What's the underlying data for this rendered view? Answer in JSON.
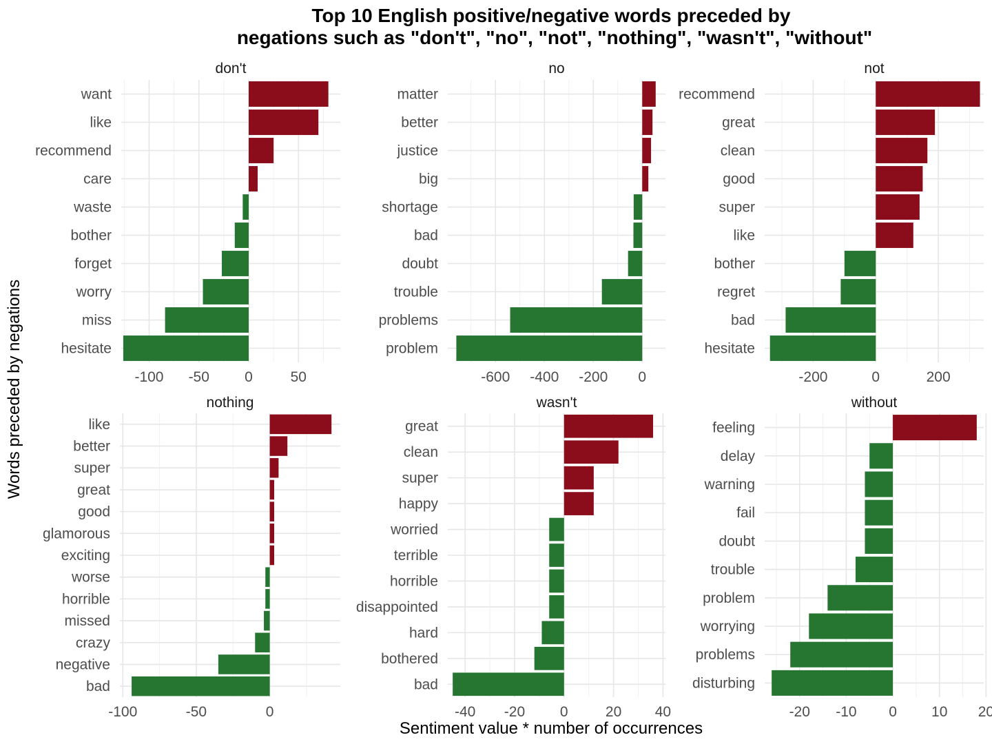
{
  "chart_data": {
    "type": "bar",
    "orientation": "horizontal",
    "title": "Top 10 English positive/negative words preceded by\nnegations such as \"don't\", \"no\", \"not\", \"nothing\", \"wasn't\", \"without\"",
    "xlabel": "Sentiment value * number of occurrences",
    "ylabel": "Words preceded by negations",
    "grid": true,
    "legend": "none",
    "colors": {
      "positive": "#8b0d1b",
      "negative": "#267632"
    },
    "facets": [
      {
        "name": "don't",
        "xlim": [
          -128,
          92
        ],
        "ticks": [
          -100,
          -50,
          0,
          50
        ],
        "categories": [
          "want",
          "like",
          "recommend",
          "care",
          "waste",
          "bother",
          "forget",
          "worry",
          "miss",
          "hesitate"
        ],
        "values": [
          80,
          70,
          25,
          9,
          -6,
          -14,
          -27,
          -46,
          -84,
          -126
        ]
      },
      {
        "name": "no",
        "xlim": [
          -795,
          95
        ],
        "ticks": [
          -600,
          -400,
          -200,
          0
        ],
        "categories": [
          "matter",
          "better",
          "justice",
          "big",
          "shortage",
          "bad",
          "doubt",
          "trouble",
          "problems",
          "problem"
        ],
        "values": [
          55,
          42,
          36,
          25,
          -35,
          -36,
          -58,
          -165,
          -540,
          -760
        ]
      },
      {
        "name": "not",
        "xlim": [
          -355,
          345
        ],
        "ticks": [
          -200,
          0,
          200
        ],
        "categories": [
          "recommend",
          "great",
          "clean",
          "good",
          "super",
          "like",
          "bother",
          "regret",
          "bad",
          "hesitate"
        ],
        "values": [
          333,
          189,
          165,
          150,
          140,
          120,
          -100,
          -112,
          -288,
          -338
        ]
      },
      {
        "name": "nothing",
        "xlim": [
          -102,
          48
        ],
        "ticks": [
          -100,
          -50,
          0
        ],
        "categories": [
          "like",
          "better",
          "super",
          "great",
          "good",
          "glamorous",
          "exciting",
          "worse",
          "horrible",
          "missed",
          "crazy",
          "negative",
          "bad"
        ],
        "values": [
          42,
          12,
          6,
          3,
          3,
          3,
          3,
          -3,
          -3,
          -4,
          -10,
          -35,
          -94
        ]
      },
      {
        "name": "wasn't",
        "xlim": [
          -47,
          41
        ],
        "ticks": [
          -40,
          -20,
          0,
          20,
          40
        ],
        "categories": [
          "great",
          "clean",
          "super",
          "happy",
          "worried",
          "terrible",
          "horrible",
          "disappointed",
          "hard",
          "bothered",
          "bad"
        ],
        "values": [
          36,
          22,
          12,
          12,
          -6,
          -6,
          -6,
          -6,
          -9,
          -12,
          -45
        ]
      },
      {
        "name": "without",
        "xlim": [
          -27.5,
          19.5
        ],
        "ticks": [
          -20,
          -10,
          0,
          10,
          20
        ],
        "categories": [
          "feeling",
          "delay",
          "warning",
          "fail",
          "doubt",
          "trouble",
          "problem",
          "worrying",
          "problems",
          "disturbing"
        ],
        "values": [
          18,
          -5,
          -6,
          -6,
          -6,
          -8,
          -14,
          -18,
          -22,
          -26
        ]
      }
    ]
  }
}
